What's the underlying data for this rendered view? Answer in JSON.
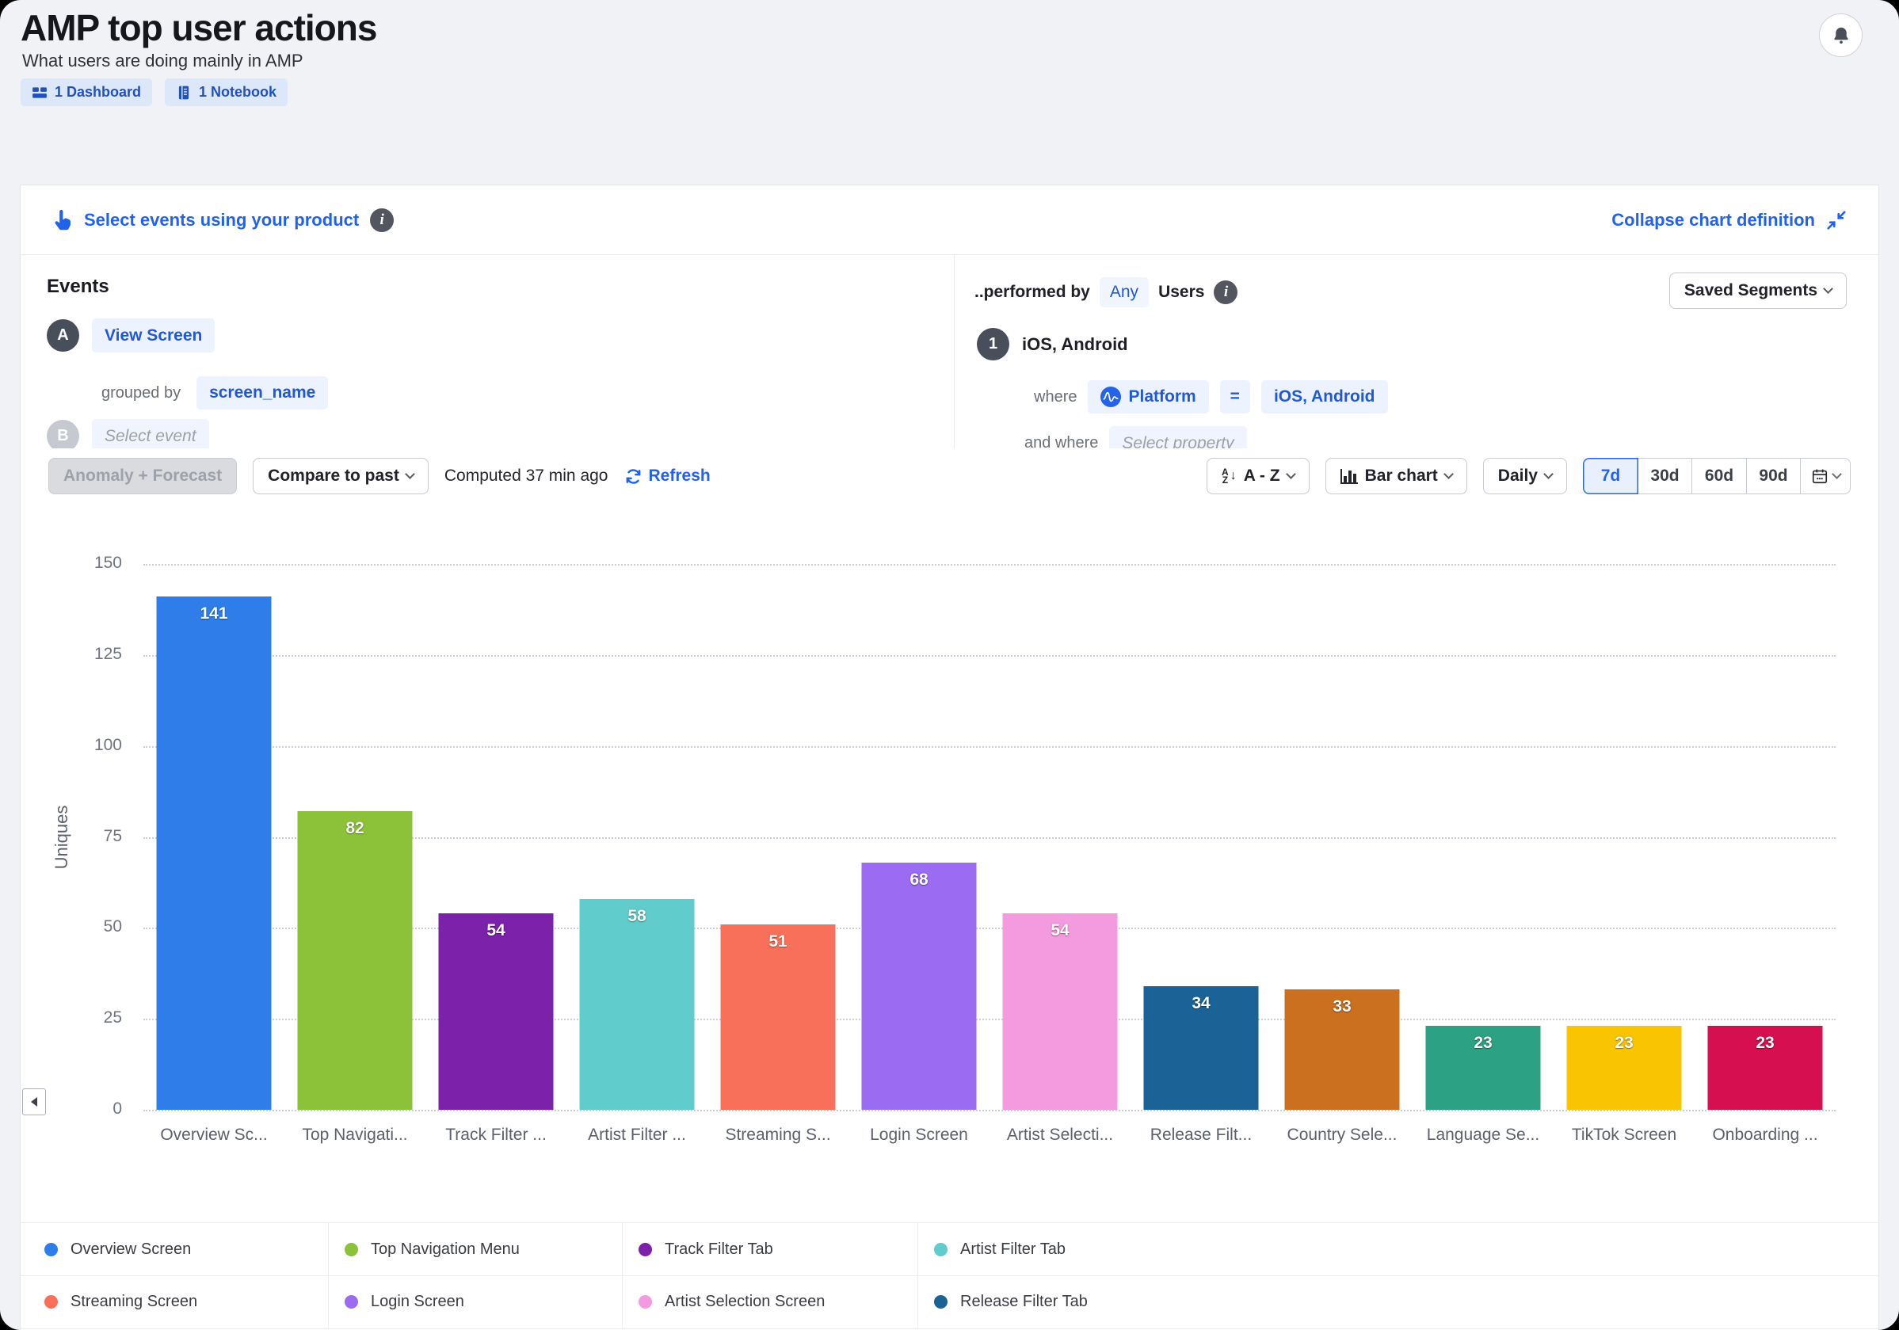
{
  "header": {
    "title": "AMP top user actions",
    "subtitle": "What users are doing mainly in AMP",
    "badges": [
      {
        "label": "1 Dashboard",
        "icon": "dashboard-icon"
      },
      {
        "label": "1 Notebook",
        "icon": "notebook-icon"
      }
    ],
    "notifications_icon": "bell-icon"
  },
  "chart_definition": {
    "select_events_label": "Select events using your product",
    "collapse_label": "Collapse chart definition",
    "events_heading": "Events",
    "events": {
      "a_badge": "A",
      "a_event": "View Screen",
      "grouped_by_label": "grouped by",
      "grouped_by_value": "screen_name",
      "b_badge": "B",
      "b_placeholder": "Select event"
    },
    "performed_by": {
      "prefix": "..performed by",
      "any": "Any",
      "suffix": "Users",
      "saved_segments": "Saved Segments",
      "segment_index": "1",
      "segment_name": "iOS, Android",
      "where_label": "where",
      "where_property": "Platform",
      "where_operator": "=",
      "where_value": "iOS, Android",
      "and_where_label": "and where",
      "and_where_placeholder": "Select property"
    }
  },
  "toolbar": {
    "anomaly_label": "Anomaly + Forecast",
    "compare_label": "Compare to past",
    "computed_label": "Computed 37 min ago",
    "refresh_label": "Refresh",
    "sort_label": "A - Z",
    "chart_type_label": "Bar chart",
    "interval_label": "Daily",
    "ranges": [
      "7d",
      "30d",
      "60d",
      "90d"
    ],
    "selected_range": "7d"
  },
  "chart_data": {
    "type": "bar",
    "title": "",
    "xlabel": "",
    "ylabel": "Uniques",
    "ylim": [
      0,
      150
    ],
    "yticks": [
      0,
      25,
      50,
      75,
      100,
      125,
      150
    ],
    "grid": true,
    "legend_position": "bottom",
    "categories": [
      "Overview Sc...",
      "Top Navigati...",
      "Track Filter ...",
      "Artist Filter ...",
      "Streaming S...",
      "Login Screen",
      "Artist Selecti...",
      "Release Filt...",
      "Country Sele...",
      "Language Se...",
      "TikTok Screen",
      "Onboarding ..."
    ],
    "values": [
      141,
      82,
      54,
      58,
      51,
      68,
      54,
      34,
      33,
      23,
      23,
      23
    ],
    "colors": [
      "#2F7DE8",
      "#8BC23A",
      "#7B21AA",
      "#60CCCC",
      "#F9705A",
      "#9B6CF2",
      "#F49BE0",
      "#1B6396",
      "#CA701E",
      "#2CA184",
      "#F9C402",
      "#D60F50"
    ]
  },
  "legend": {
    "items": [
      {
        "label": "Overview Screen",
        "color": "#2F7DE8"
      },
      {
        "label": "Top Navigation Menu",
        "color": "#8BC23A"
      },
      {
        "label": "Track Filter Tab",
        "color": "#7B21AA"
      },
      {
        "label": "Artist Filter Tab",
        "color": "#60CCCC"
      },
      {
        "label": "Streaming Screen",
        "color": "#F9705A"
      },
      {
        "label": "Login Screen",
        "color": "#9B6CF2"
      },
      {
        "label": "Artist Selection Screen",
        "color": "#F49BE0"
      },
      {
        "label": "Release Filter Tab",
        "color": "#1B6396"
      }
    ]
  },
  "colors": {
    "accent": "#2262EB",
    "chip_text": "#2158D8",
    "chip_bg": "#EDF3FE"
  }
}
